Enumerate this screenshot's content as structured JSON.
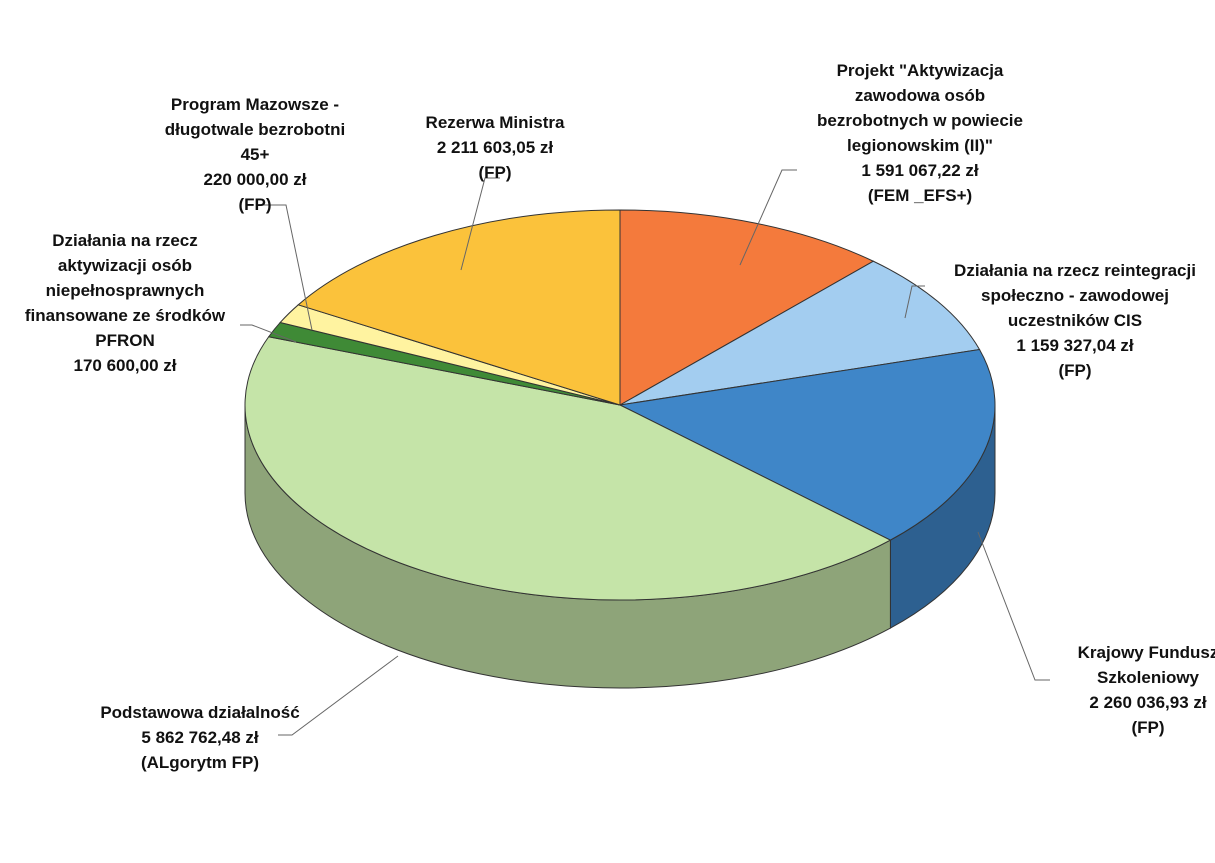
{
  "chart_data": {
    "type": "pie3d",
    "categories": [
      "Projekt \"Aktywizacja zawodowa osób bezrobotnych w powiecie legionowskim (II)\"",
      "Działania na rzecz reintegracji społeczno - zawodowej uczestników CIS",
      "Krajowy Fundusz Szkoleniowy",
      "Podstawowa działalność",
      "Działania na rzecz aktywizacji osób niepełnosprawnych finansowane ze środków PFRON",
      "Program Mazowsze - długotwale bezrobotni 45+",
      "Rezerwa Ministra"
    ],
    "values": [
      1591067.22,
      1159327.04,
      2260036.93,
      5862762.48,
      170600.0,
      220000.0,
      2211603.05
    ],
    "value_labels": [
      "1 591 067,22 zł",
      "1 159 327,04 zł",
      "2 260 036,93 zł",
      "5 862 762,48 zł",
      "170 600,00 zł",
      "220 000,00 zł",
      "2 211 603,05 zł"
    ],
    "sources": [
      "(FEM _EFS+)",
      "(FP)",
      "(FP)",
      "(ALgorytm FP)",
      null,
      "(FP)",
      "(FP)"
    ],
    "colors": [
      "#f47a3c",
      "#a3cdf0",
      "#3f86c8",
      "#c5e4a8",
      "#3f8a36",
      "#fff3a0",
      "#fbc23b"
    ]
  }
}
